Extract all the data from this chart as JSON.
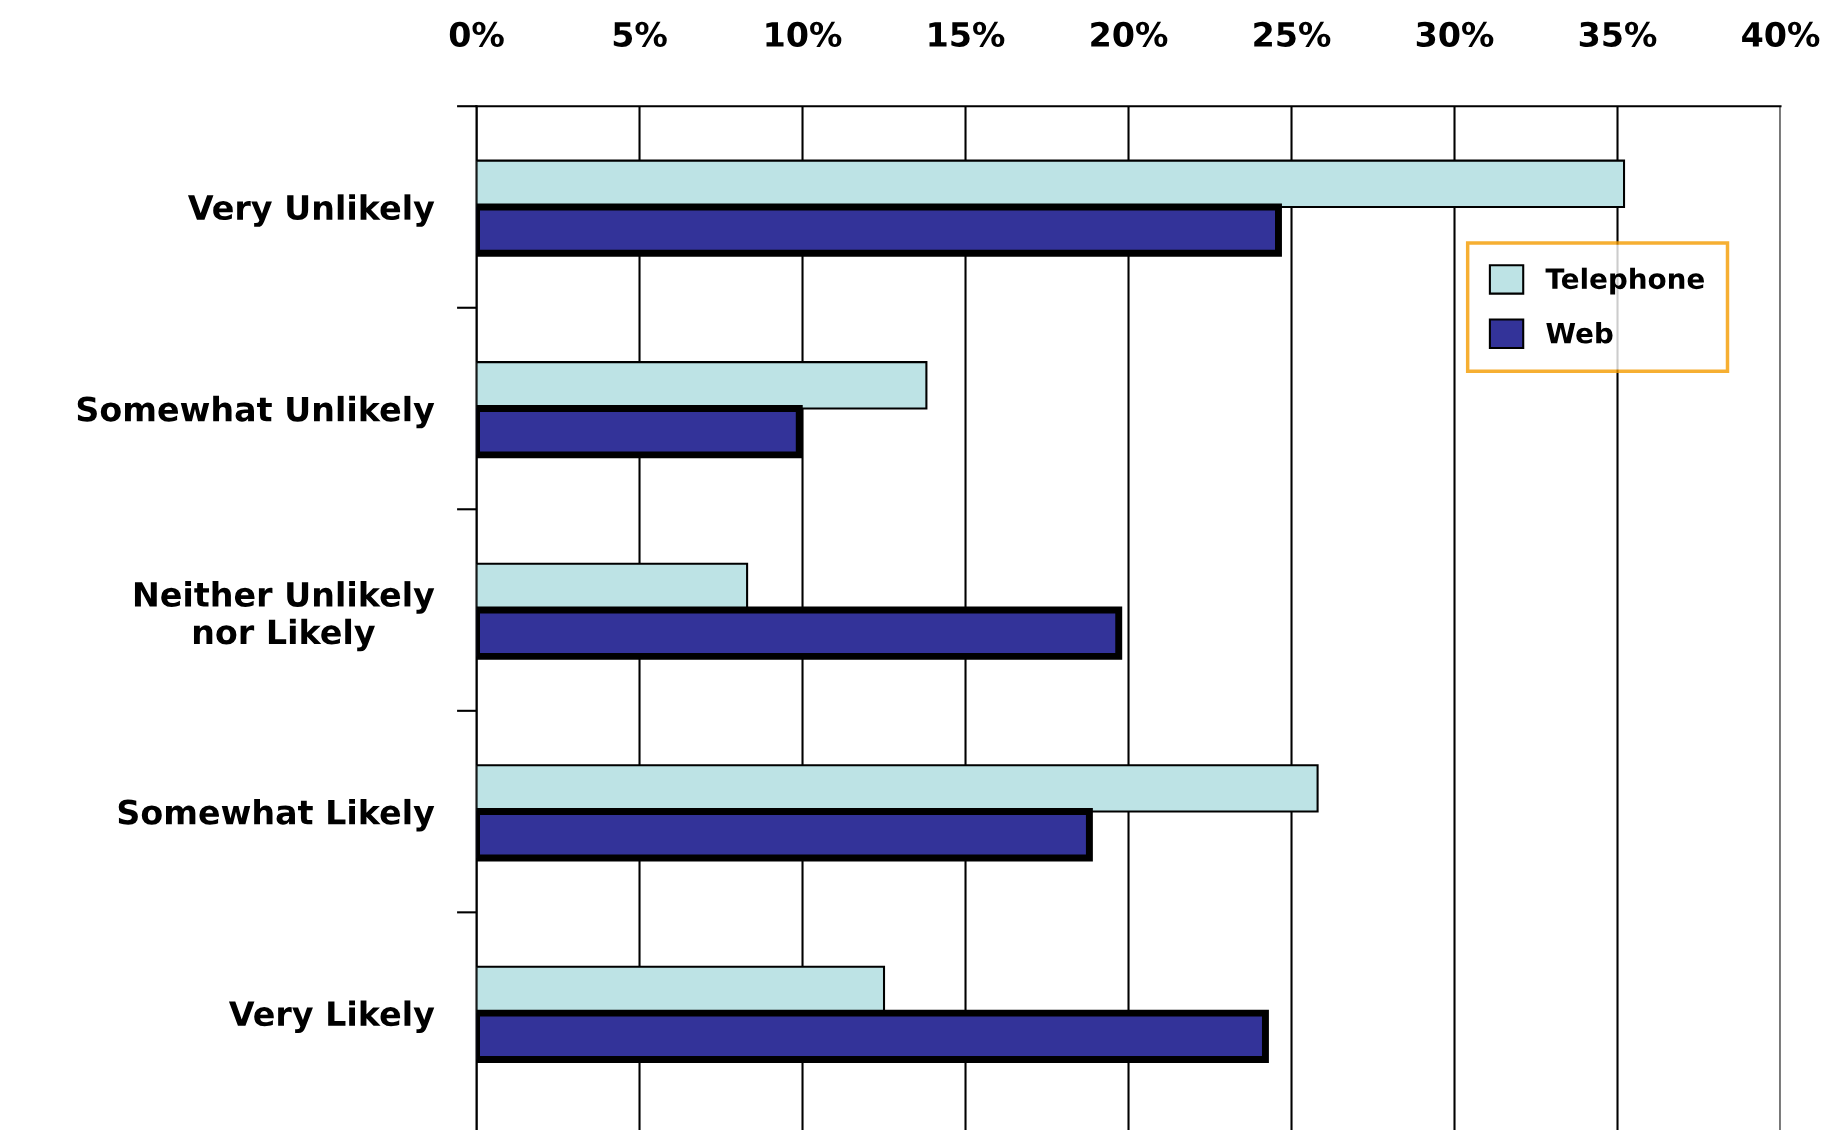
{
  "chart_data": {
    "type": "bar",
    "orientation": "horizontal",
    "categories": [
      "Very Unlikely",
      "Somewhat Unlikely",
      "Neither Unlikely\nnor Likely",
      "Somewhat Likely",
      "Very Likely"
    ],
    "series": [
      {
        "name": "Telephone",
        "color": "#bde3e5",
        "values": [
          35.2,
          13.8,
          8.3,
          25.8,
          12.5
        ]
      },
      {
        "name": "Web",
        "color": "#333399",
        "values": [
          24.6,
          9.9,
          19.7,
          18.8,
          24.2
        ]
      }
    ],
    "xlim": [
      0,
      40
    ],
    "xticks": [
      {
        "value": 0,
        "label": "0%"
      },
      {
        "value": 5,
        "label": "5%"
      },
      {
        "value": 10,
        "label": "10%"
      },
      {
        "value": 15,
        "label": "15%"
      },
      {
        "value": 20,
        "label": "20%"
      },
      {
        "value": 25,
        "label": "25%"
      },
      {
        "value": 30,
        "label": "30%"
      },
      {
        "value": 35,
        "label": "35%"
      },
      {
        "value": 40,
        "label": "40%"
      }
    ],
    "grid": "x",
    "legend": "top right"
  }
}
